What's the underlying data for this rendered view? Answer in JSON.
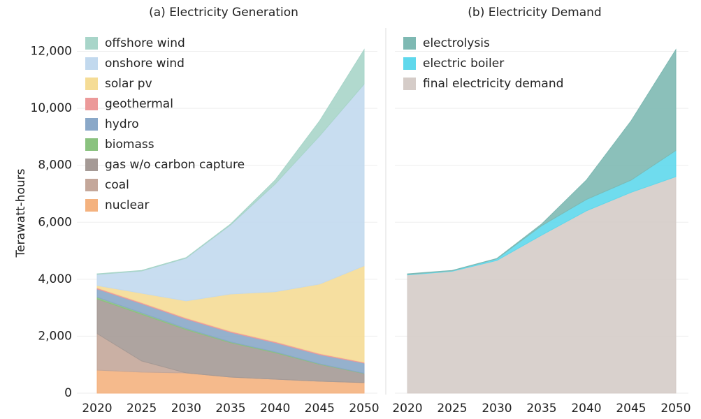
{
  "chart_data": [
    {
      "type": "stacked_area",
      "title": "(a) Electricity Generation",
      "y_label": "Terawatt-hours",
      "x": [
        2020,
        2025,
        2030,
        2035,
        2040,
        2045,
        2050
      ],
      "xlim": [
        2020,
        2050
      ],
      "xticks": [
        2020,
        2025,
        2030,
        2035,
        2040,
        2045,
        2050
      ],
      "ylim": [
        0,
        12700
      ],
      "yticks": [
        0,
        {
          "value": 2000,
          "label": "2,000"
        },
        {
          "value": 4000,
          "label": "4,000"
        },
        {
          "value": 6000,
          "label": "6,000"
        },
        {
          "value": 8000,
          "label": "8,000"
        },
        {
          "value": 10000,
          "label": "10,000"
        },
        {
          "value": 12000,
          "label": "12,000"
        }
      ],
      "grid": true,
      "legend": "top-left",
      "series": [
        {
          "name": "nuclear",
          "color": "#f4b27f",
          "values": [
            810,
            740,
            710,
            565,
            490,
            420,
            370
          ]
        },
        {
          "name": "coal",
          "color": "#c4a79a",
          "values": [
            1280,
            390,
            0,
            0,
            0,
            0,
            0
          ]
        },
        {
          "name": "gas w/o carbon capture",
          "color": "#a59a96",
          "values": [
            1220,
            1640,
            1520,
            1205,
            930,
            590,
            320
          ]
        },
        {
          "name": "biomass",
          "color": "#8ac27f",
          "values": [
            60,
            50,
            40,
            30,
            30,
            20,
            10
          ]
        },
        {
          "name": "hydro",
          "color": "#8aa8c8",
          "values": [
            290,
            320,
            330,
            335,
            320,
            320,
            355
          ]
        },
        {
          "name": "geothermal",
          "color": "#ec9a9a",
          "values": [
            40,
            40,
            40,
            40,
            40,
            40,
            30
          ]
        },
        {
          "name": "solar pv",
          "color": "#f5dc96",
          "values": [
            80,
            330,
            600,
            1305,
            1750,
            2440,
            3385
          ]
        },
        {
          "name": "onshore wind",
          "color": "#c2d9ee",
          "values": [
            390,
            780,
            1500,
            2430,
            3780,
            5200,
            6380
          ]
        },
        {
          "name": "offshore wind",
          "color": "#a8d5c9",
          "values": [
            20,
            20,
            20,
            30,
            140,
            530,
            1210
          ]
        }
      ]
    },
    {
      "type": "stacked_area",
      "title": "(b) Electricity Demand",
      "x": [
        2020,
        2025,
        2030,
        2035,
        2040,
        2045,
        2050
      ],
      "xlim": [
        2020,
        2050
      ],
      "xticks": [
        2020,
        2025,
        2030,
        2035,
        2040,
        2045,
        2050
      ],
      "ylim": [
        0,
        12700
      ],
      "grid": true,
      "legend": "top-left",
      "series": [
        {
          "name": "final electricity demand",
          "color": "#d5ccc8",
          "values": [
            4150,
            4280,
            4660,
            5550,
            6400,
            7050,
            7600
          ]
        },
        {
          "name": "electric boiler",
          "color": "#5fd8ec",
          "values": [
            20,
            20,
            60,
            330,
            400,
            430,
            920
          ]
        },
        {
          "name": "electrolysis",
          "color": "#7eb9b3",
          "values": [
            20,
            10,
            10,
            60,
            680,
            2080,
            3540
          ]
        }
      ]
    }
  ]
}
